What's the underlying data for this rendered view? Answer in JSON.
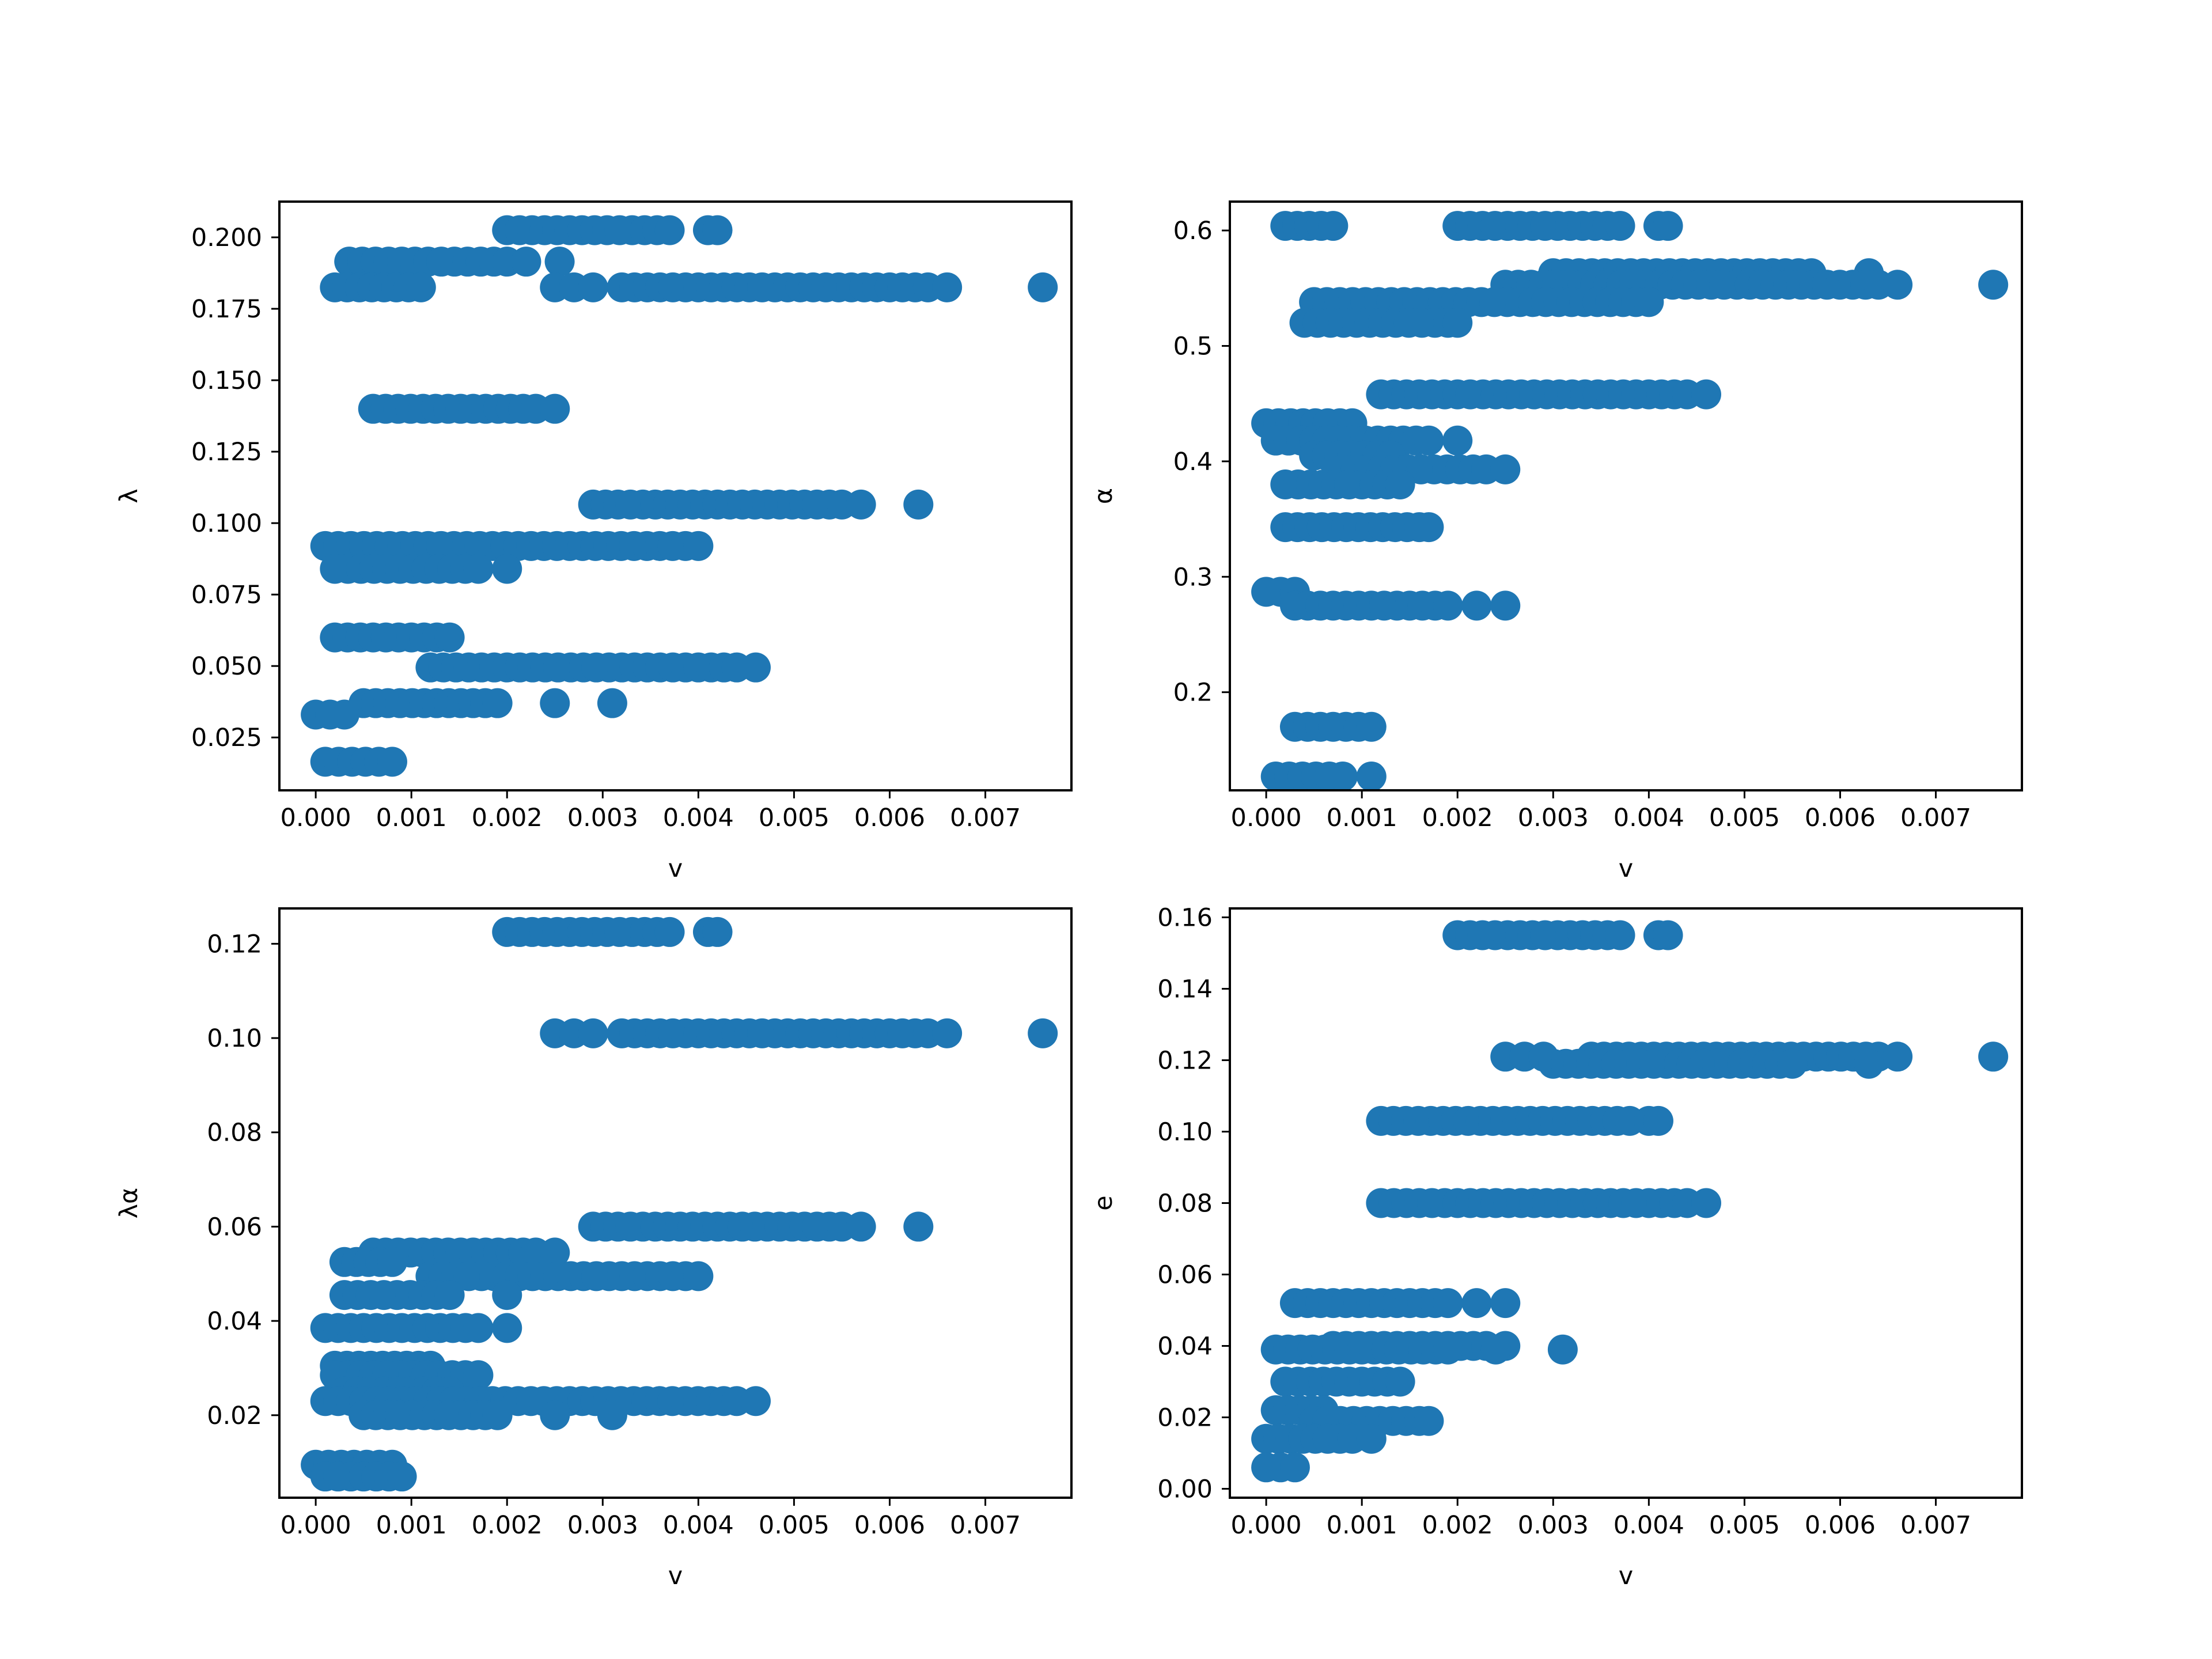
{
  "figure": {
    "background": "#ffffff",
    "marker_color": "#1f77b4"
  },
  "chart_data": [
    {
      "type": "scatter",
      "xlabel": "v",
      "ylabel": "λ",
      "xlim": [
        -0.00038,
        0.0079
      ],
      "ylim": [
        0.0065,
        0.2125
      ],
      "xticks": [
        "0.000",
        "0.001",
        "0.002",
        "0.003",
        "0.004",
        "0.005",
        "0.006",
        "0.007"
      ],
      "yticks": [
        0.025,
        0.05,
        0.075,
        0.1,
        0.125,
        0.15,
        0.175,
        0.2
      ],
      "ytick_labels": [
        "0.025",
        "0.050",
        "0.075",
        "0.100",
        "0.125",
        "0.150",
        "0.175",
        "0.200"
      ],
      "grid": false,
      "bands": [
        {
          "y": 0.2025,
          "x_start": 0.002,
          "x_end": 0.0037,
          "extra_x": [
            0.0041,
            0.0042
          ]
        },
        {
          "y": 0.1915,
          "x_start": 0.00035,
          "x_end": 0.002,
          "extra_x": [
            0.0022,
            0.00255
          ]
        },
        {
          "y": 0.1825,
          "x_start": 0.0002,
          "x_end": 0.0011,
          "extra_x": []
        },
        {
          "y": 0.1825,
          "x_start": 0.0032,
          "x_end": 0.0064,
          "extra_x": [
            0.0025,
            0.0027,
            0.0029,
            0.0066,
            0.0076
          ]
        },
        {
          "y": 0.14,
          "x_start": 0.0006,
          "x_end": 0.0023,
          "extra_x": [
            0.0025
          ]
        },
        {
          "y": 0.1065,
          "x_start": 0.0029,
          "x_end": 0.0055,
          "extra_x": [
            0.0057,
            0.0063
          ]
        },
        {
          "y": 0.092,
          "x_start": 0.0001,
          "x_end": 0.004,
          "extra_x": []
        },
        {
          "y": 0.084,
          "x_start": 0.0002,
          "x_end": 0.0017,
          "extra_x": [
            0.002
          ]
        },
        {
          "y": 0.06,
          "x_start": 0.0002,
          "x_end": 0.0014,
          "extra_x": []
        },
        {
          "y": 0.0495,
          "x_start": 0.0012,
          "x_end": 0.0044,
          "extra_x": [
            0.0046
          ]
        },
        {
          "y": 0.037,
          "x_start": 0.0005,
          "x_end": 0.0019,
          "extra_x": [
            0.0025,
            0.0031
          ]
        },
        {
          "y": 0.033,
          "x_start": 0.0,
          "x_end": 0.0003,
          "extra_x": []
        },
        {
          "y": 0.0165,
          "x_start": 0.0001,
          "x_end": 0.0008,
          "extra_x": []
        }
      ]
    },
    {
      "type": "scatter",
      "xlabel": "v",
      "ylabel": "α",
      "xlim": [
        -0.00038,
        0.0079
      ],
      "ylim": [
        0.115,
        0.625
      ],
      "xticks": [
        "0.000",
        "0.001",
        "0.002",
        "0.003",
        "0.004",
        "0.005",
        "0.006",
        "0.007"
      ],
      "yticks": [
        0.2,
        0.3,
        0.4,
        0.5,
        0.6
      ],
      "ytick_labels": [
        "0.2",
        "0.3",
        "0.4",
        "0.5",
        "0.6"
      ],
      "grid": false,
      "bands": [
        {
          "y": 0.604,
          "x_start": 0.0002,
          "x_end": 0.0007,
          "extra_x": []
        },
        {
          "y": 0.604,
          "x_start": 0.002,
          "x_end": 0.0037,
          "extra_x": [
            0.0041,
            0.0042
          ]
        },
        {
          "y": 0.563,
          "x_start": 0.003,
          "x_end": 0.0057,
          "extra_x": [
            0.0063
          ]
        },
        {
          "y": 0.553,
          "x_start": 0.0025,
          "x_end": 0.0064,
          "extra_x": [
            0.0066,
            0.0076
          ]
        },
        {
          "y": 0.538,
          "x_start": 0.0005,
          "x_end": 0.004,
          "extra_x": []
        },
        {
          "y": 0.52,
          "x_start": 0.0004,
          "x_end": 0.0019,
          "extra_x": [
            0.002
          ]
        },
        {
          "y": 0.458,
          "x_start": 0.0012,
          "x_end": 0.0044,
          "extra_x": [
            0.0046
          ]
        },
        {
          "y": 0.433,
          "x_start": 0.0,
          "x_end": 0.0009,
          "extra_x": []
        },
        {
          "y": 0.418,
          "x_start": 0.0001,
          "x_end": 0.0017,
          "extra_x": [
            0.002
          ]
        },
        {
          "y": 0.405,
          "x_start": 0.0005,
          "x_end": 0.0013,
          "extra_x": []
        },
        {
          "y": 0.393,
          "x_start": 0.0008,
          "x_end": 0.0023,
          "extra_x": [
            0.0025
          ]
        },
        {
          "y": 0.38,
          "x_start": 0.0002,
          "x_end": 0.0014,
          "extra_x": []
        },
        {
          "y": 0.343,
          "x_start": 0.0002,
          "x_end": 0.0016,
          "extra_x": [
            0.0017
          ]
        },
        {
          "y": 0.287,
          "x_start": 0.0,
          "x_end": 0.0003,
          "extra_x": []
        },
        {
          "y": 0.275,
          "x_start": 0.0003,
          "x_end": 0.0019,
          "extra_x": [
            0.0022,
            0.0025
          ]
        },
        {
          "y": 0.17,
          "x_start": 0.0003,
          "x_end": 0.0011,
          "extra_x": []
        },
        {
          "y": 0.127,
          "x_start": 0.0001,
          "x_end": 0.0008,
          "extra_x": [
            0.0011
          ]
        }
      ]
    },
    {
      "type": "scatter",
      "xlabel": "v",
      "ylabel": "λα",
      "xlim": [
        -0.00038,
        0.0079
      ],
      "ylim": [
        0.0025,
        0.1275
      ],
      "xticks": [
        "0.000",
        "0.001",
        "0.002",
        "0.003",
        "0.004",
        "0.005",
        "0.006",
        "0.007"
      ],
      "yticks": [
        0.02,
        0.04,
        0.06,
        0.08,
        0.1,
        0.12
      ],
      "ytick_labels": [
        "0.02",
        "0.04",
        "0.06",
        "0.08",
        "0.10",
        "0.12"
      ],
      "grid": false,
      "bands": [
        {
          "y": 0.1225,
          "x_start": 0.002,
          "x_end": 0.0037,
          "extra_x": [
            0.0041,
            0.0042
          ]
        },
        {
          "y": 0.101,
          "x_start": 0.0032,
          "x_end": 0.0064,
          "extra_x": [
            0.0025,
            0.0027,
            0.0029,
            0.0066,
            0.0076
          ]
        },
        {
          "y": 0.06,
          "x_start": 0.0029,
          "x_end": 0.0055,
          "extra_x": [
            0.0057,
            0.0063
          ]
        },
        {
          "y": 0.0545,
          "x_start": 0.0006,
          "x_end": 0.0023,
          "extra_x": [
            0.0025
          ]
        },
        {
          "y": 0.0525,
          "x_start": 0.0003,
          "x_end": 0.0008,
          "extra_x": []
        },
        {
          "y": 0.0495,
          "x_start": 0.0012,
          "x_end": 0.004,
          "extra_x": []
        },
        {
          "y": 0.0455,
          "x_start": 0.0003,
          "x_end": 0.0014,
          "extra_x": [
            0.002
          ]
        },
        {
          "y": 0.0385,
          "x_start": 0.0001,
          "x_end": 0.0017,
          "extra_x": [
            0.002
          ]
        },
        {
          "y": 0.0305,
          "x_start": 0.0002,
          "x_end": 0.0012,
          "extra_x": []
        },
        {
          "y": 0.0285,
          "x_start": 0.0002,
          "x_end": 0.0017,
          "extra_x": []
        },
        {
          "y": 0.025,
          "x_start": 0.0003,
          "x_end": 0.0014,
          "extra_x": []
        },
        {
          "y": 0.023,
          "x_start": 0.0001,
          "x_end": 0.0044,
          "extra_x": [
            0.0046
          ]
        },
        {
          "y": 0.02,
          "x_start": 0.0005,
          "x_end": 0.0019,
          "extra_x": [
            0.0025,
            0.0031
          ]
        },
        {
          "y": 0.0095,
          "x_start": 0.0,
          "x_end": 0.0008,
          "extra_x": []
        },
        {
          "y": 0.007,
          "x_start": 0.0001,
          "x_end": 0.0009,
          "extra_x": []
        }
      ]
    },
    {
      "type": "scatter",
      "xlabel": "v",
      "ylabel": "e",
      "xlim": [
        -0.00038,
        0.0079
      ],
      "ylim": [
        -0.0025,
        0.1625
      ],
      "xticks": [
        "0.000",
        "0.001",
        "0.002",
        "0.003",
        "0.004",
        "0.005",
        "0.006",
        "0.007"
      ],
      "yticks": [
        0.0,
        0.02,
        0.04,
        0.06,
        0.08,
        0.1,
        0.12,
        0.14,
        0.16
      ],
      "ytick_labels": [
        "0.00",
        "0.02",
        "0.04",
        "0.06",
        "0.08",
        "0.10",
        "0.12",
        "0.14",
        "0.16"
      ],
      "grid": false,
      "bands": [
        {
          "y": 0.155,
          "x_start": 0.002,
          "x_end": 0.0037,
          "extra_x": [
            0.0041,
            0.0042
          ]
        },
        {
          "y": 0.121,
          "x_start": 0.0034,
          "x_end": 0.0064,
          "extra_x": [
            0.0025,
            0.0027,
            0.0029,
            0.0066,
            0.0076
          ]
        },
        {
          "y": 0.119,
          "x_start": 0.003,
          "x_end": 0.0055,
          "extra_x": [
            0.0063
          ]
        },
        {
          "y": 0.103,
          "x_start": 0.0012,
          "x_end": 0.0038,
          "extra_x": [
            0.004,
            0.0041
          ]
        },
        {
          "y": 0.08,
          "x_start": 0.0012,
          "x_end": 0.0044,
          "extra_x": [
            0.0046
          ]
        },
        {
          "y": 0.052,
          "x_start": 0.0003,
          "x_end": 0.0019,
          "extra_x": [
            0.0022,
            0.0025
          ]
        },
        {
          "y": 0.04,
          "x_start": 0.0007,
          "x_end": 0.0023,
          "extra_x": [
            0.0025
          ]
        },
        {
          "y": 0.039,
          "x_start": 0.0001,
          "x_end": 0.0019,
          "extra_x": [
            0.0024,
            0.0031
          ]
        },
        {
          "y": 0.03,
          "x_start": 0.0002,
          "x_end": 0.0014,
          "extra_x": []
        },
        {
          "y": 0.022,
          "x_start": 0.0001,
          "x_end": 0.0006,
          "extra_x": []
        },
        {
          "y": 0.019,
          "x_start": 0.0005,
          "x_end": 0.0016,
          "extra_x": [
            0.0017
          ]
        },
        {
          "y": 0.014,
          "x_start": 0.0,
          "x_end": 0.0009,
          "extra_x": [
            0.0011
          ]
        },
        {
          "y": 0.006,
          "x_start": 0.0,
          "x_end": 0.0003,
          "extra_x": []
        }
      ]
    }
  ]
}
